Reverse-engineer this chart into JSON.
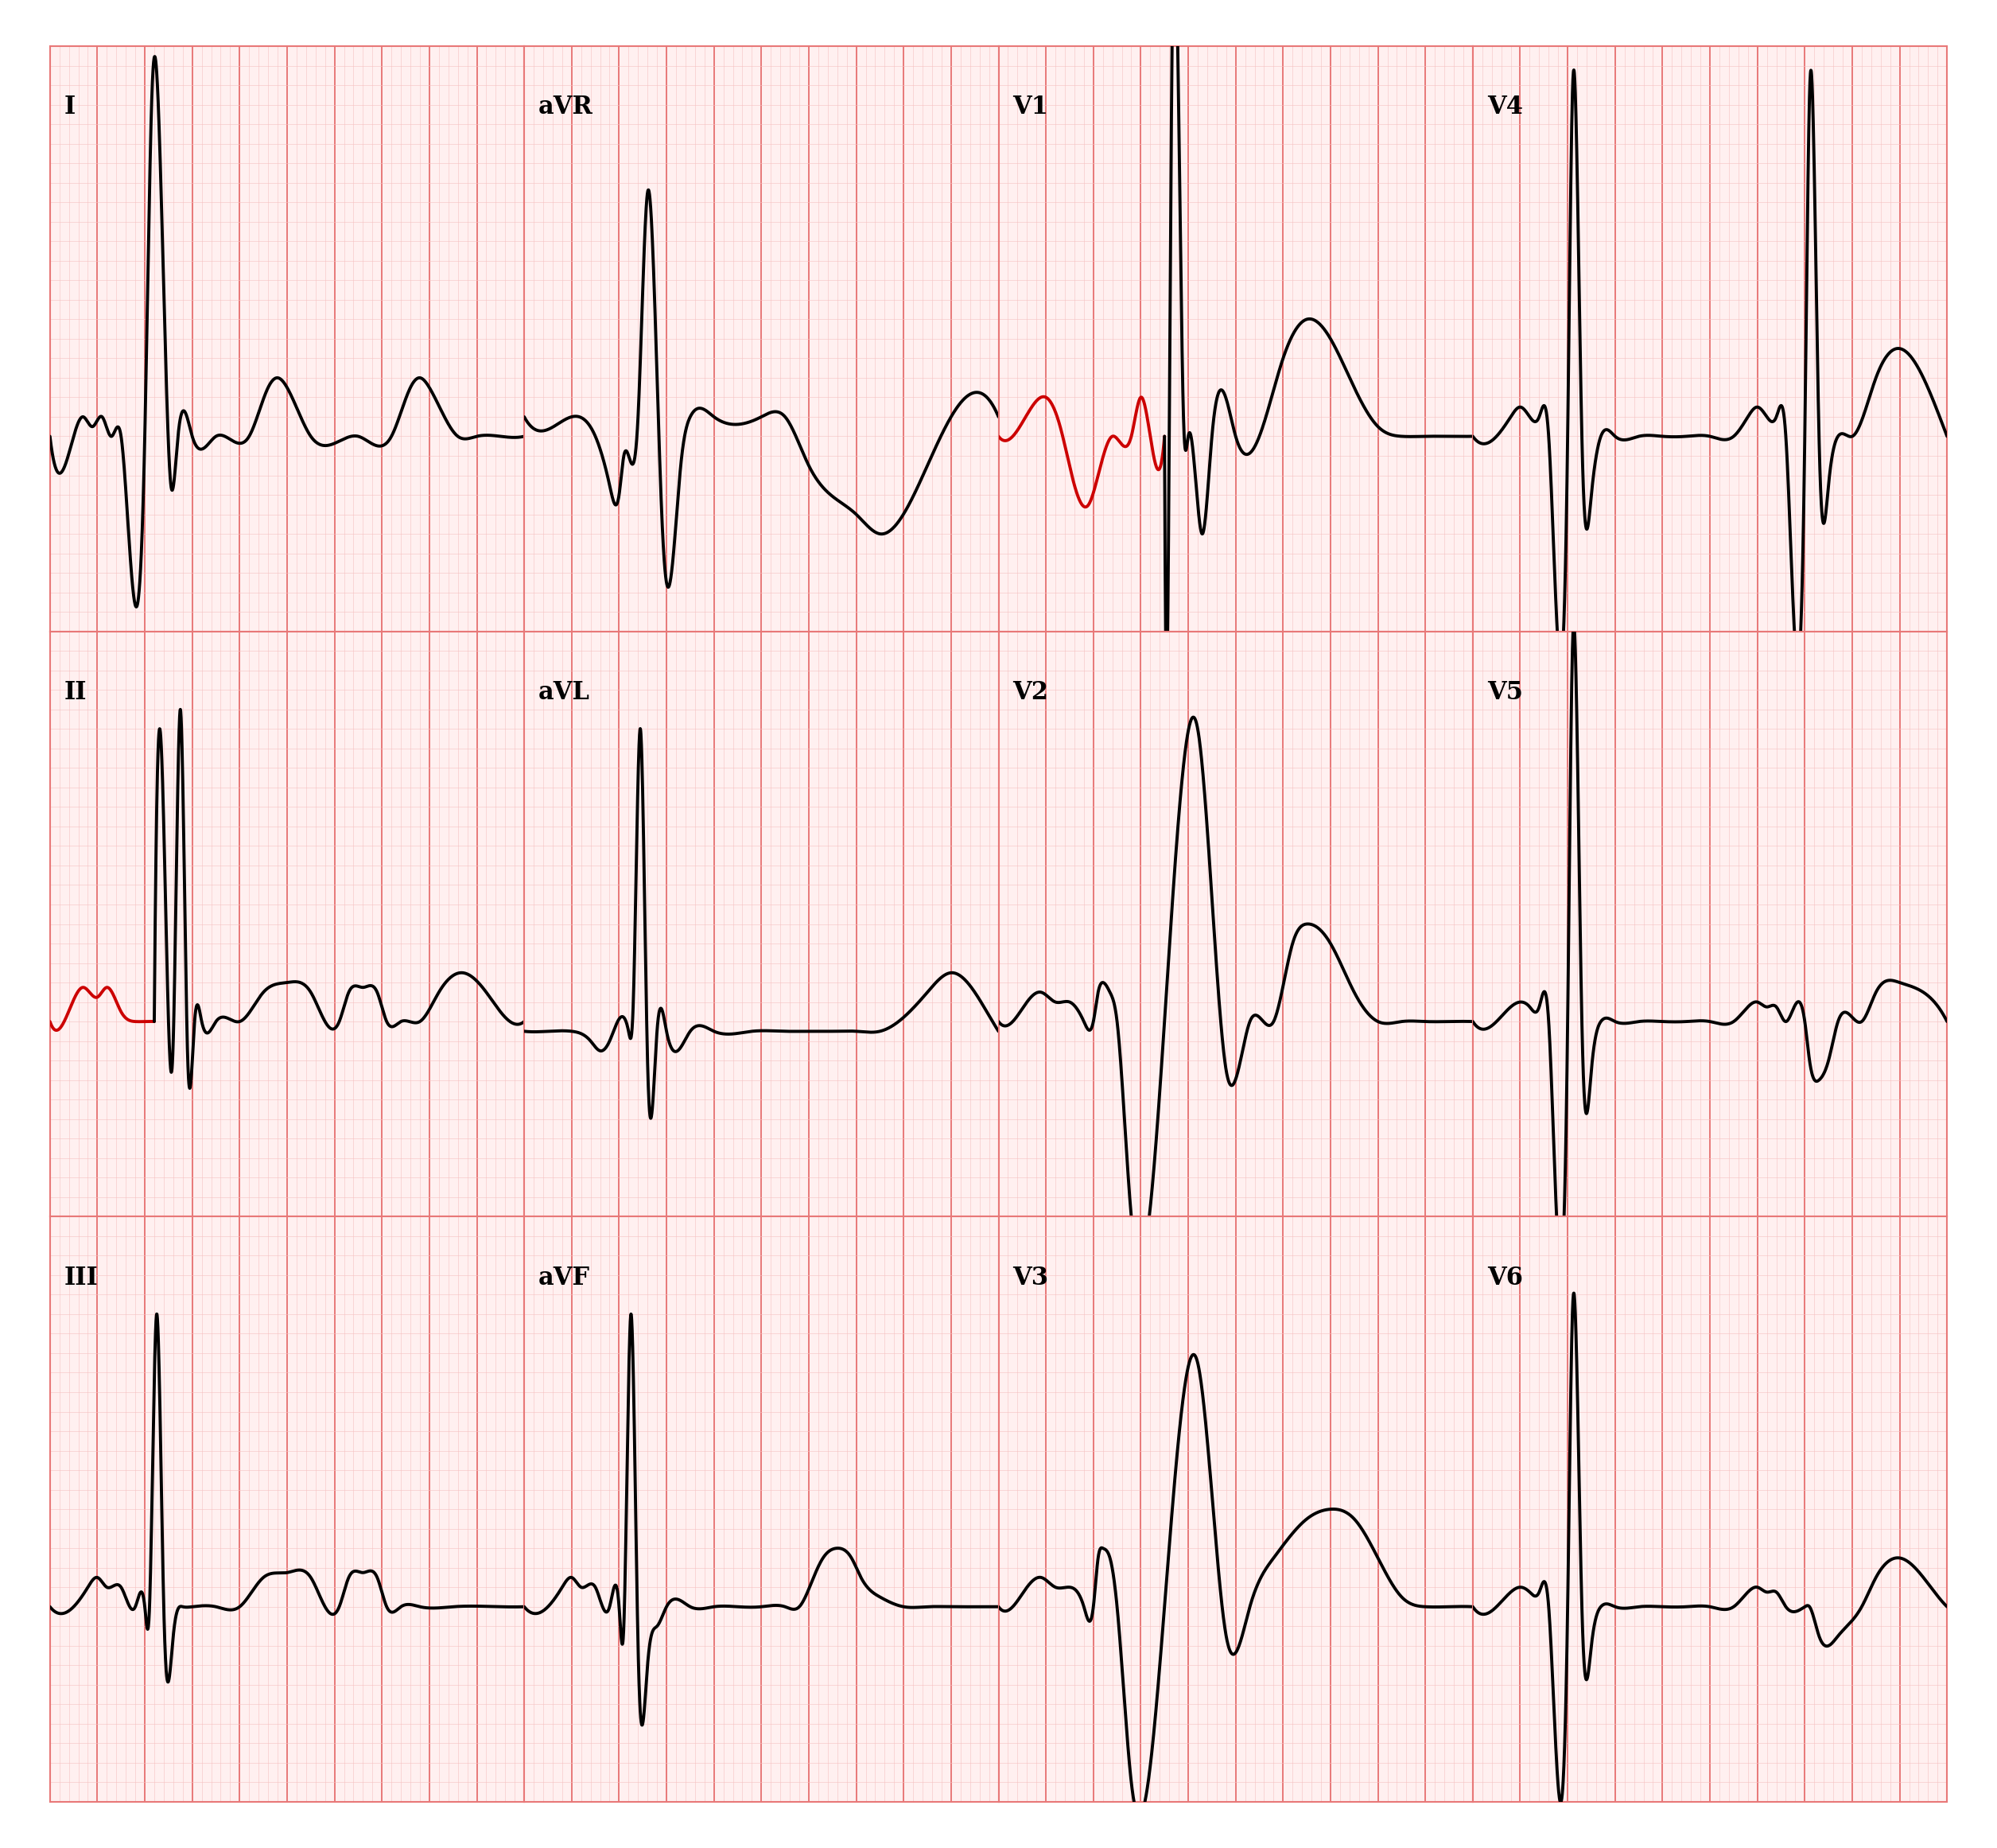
{
  "background_color": "#FFFFFF",
  "panel_bg": "#FFF0F0",
  "grid_major_color": "#E87878",
  "grid_minor_color": "#F5C0C0",
  "line_color": "#000000",
  "highlight_color": "#CC0000",
  "label_fontsize": 22,
  "leads": [
    "I",
    "aVR",
    "V1",
    "V4",
    "II",
    "aVL",
    "V2",
    "V5",
    "III",
    "aVF",
    "V3",
    "V6"
  ],
  "grid_rows": 3,
  "grid_cols": 4,
  "lw": 2.8
}
